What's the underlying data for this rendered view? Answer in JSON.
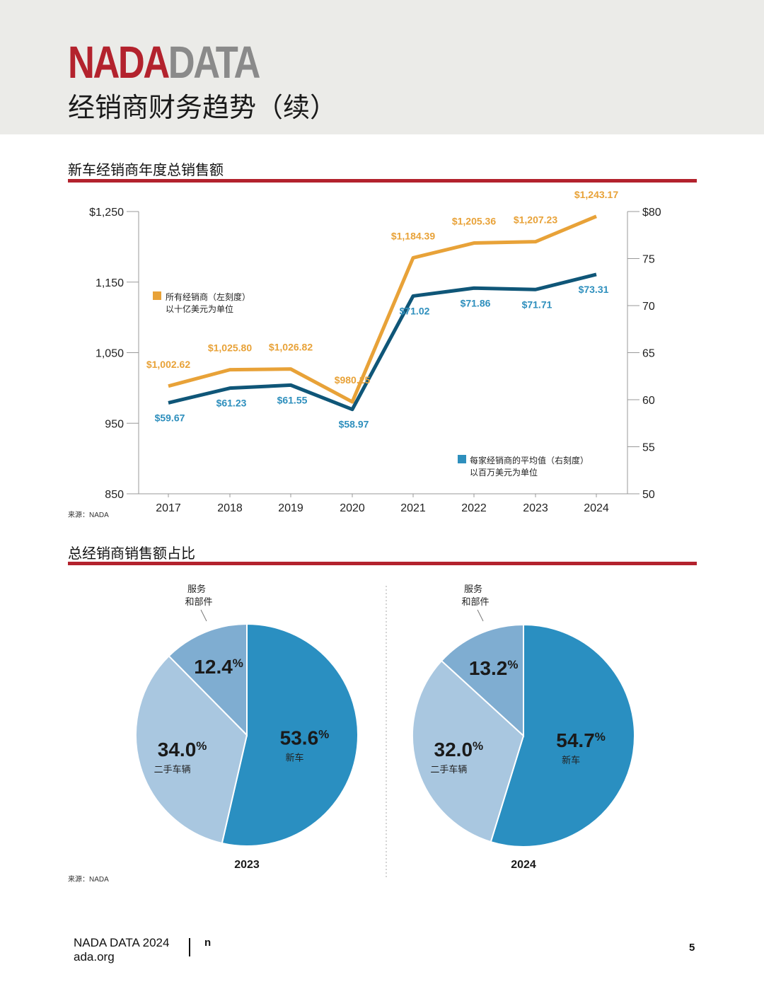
{
  "brand": {
    "part1": "NADA",
    "part2": "DATA"
  },
  "page_title": "经销商财务趋势（续）",
  "line_section": {
    "title": "新车经销商年度总销售额",
    "source": "来源：NADA"
  },
  "pie_section": {
    "title": "总经销商销售额占比",
    "source": "来源：NADA"
  },
  "footer": {
    "line1": "NADA DATA 2024",
    "line2": "ada.org",
    "mark": "n",
    "page_number": "5"
  },
  "colors": {
    "accent_red": "#b3222d",
    "orange": "#e8a238",
    "navy": "#0f5678",
    "label_blue": "#2e8fbd",
    "pie_new": "#2a8fc1",
    "pie_used": "#a9c7e0",
    "pie_service": "#7fadd1"
  },
  "chart_data": [
    {
      "type": "line",
      "categories": [
        "2017",
        "2018",
        "2019",
        "2020",
        "2021",
        "2022",
        "2023",
        "2024"
      ],
      "series": [
        {
          "name": "所有经销商（左刻度）",
          "legend_line2": "以十亿美元为单位",
          "axis": "left",
          "values": [
            1002.62,
            1025.8,
            1026.82,
            980.25,
            1184.39,
            1205.36,
            1207.23,
            1243.17
          ],
          "labels": [
            "$1,002.62",
            "$1,025.80",
            "$1,026.82",
            "$980.25",
            "$1,184.39",
            "$1,205.36",
            "$1,207.23",
            "$1,243.17"
          ],
          "color": "#e8a238"
        },
        {
          "name": "每家经销商的平均值（右刻度）",
          "legend_line2": "以百万美元为单位",
          "axis": "right",
          "values": [
            59.67,
            61.23,
            61.55,
            58.97,
            71.02,
            71.86,
            71.71,
            73.31
          ],
          "labels": [
            "$59.67",
            "$61.23",
            "$61.55",
            "$58.97",
            "$71.02",
            "$71.86",
            "$71.71",
            "$73.31"
          ],
          "color": "#0f5678"
        }
      ],
      "y_left": {
        "lim": [
          850,
          1250
        ],
        "ticks": [
          "$1,250",
          "1,150",
          "1,050",
          "950",
          "850"
        ]
      },
      "y_right": {
        "lim": [
          50,
          80
        ],
        "ticks": [
          "$80",
          "75",
          "70",
          "65",
          "60",
          "55",
          "50"
        ]
      },
      "grid": false
    },
    {
      "type": "pie",
      "title": "2023",
      "slices": [
        {
          "label": "新车",
          "value": 53.6,
          "color": "#2a8fc1"
        },
        {
          "label": "二手车辆",
          "value": 34.0,
          "color": "#a9c7e0"
        },
        {
          "label": "服务 和部件",
          "label_line1": "服务",
          "label_line2": "和部件",
          "value": 12.4,
          "color": "#7fadd1"
        }
      ]
    },
    {
      "type": "pie",
      "title": "2024",
      "slices": [
        {
          "label": "新车",
          "value": 54.7,
          "color": "#2a8fc1"
        },
        {
          "label": "二手车辆",
          "value": 32.0,
          "color": "#a9c7e0"
        },
        {
          "label": "服务 和部件",
          "label_line1": "服务",
          "label_line2": "和部件",
          "value": 13.2,
          "color": "#7fadd1"
        }
      ]
    }
  ]
}
